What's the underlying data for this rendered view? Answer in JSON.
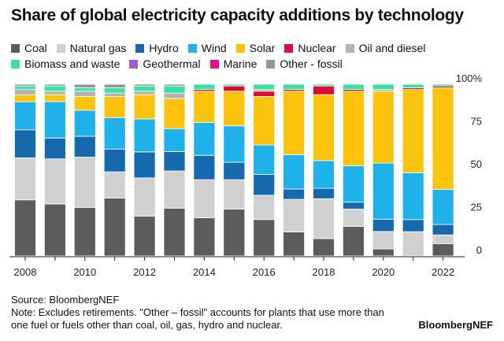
{
  "chart_data": {
    "type": "bar",
    "stacked": true,
    "title": "Share of global electricity capacity additions by technology",
    "xlabel": "",
    "ylabel": "",
    "ylim": [
      0,
      100
    ],
    "y_ticks": [
      "0",
      "25",
      "50",
      "75",
      "100%"
    ],
    "x_tick_labels": [
      "2008",
      "2010",
      "2012",
      "2014",
      "2016",
      "2018",
      "2020",
      "2022"
    ],
    "categories": [
      "2008",
      "2009",
      "2010",
      "2011",
      "2012",
      "2013",
      "2014",
      "2015",
      "2016",
      "2017",
      "2018",
      "2019",
      "2020",
      "2021",
      "2022"
    ],
    "legend_position": "top",
    "grid": false,
    "series": [
      {
        "name": "Coal",
        "color": "#5c5c5c",
        "values": [
          32,
          30,
          28,
          33,
          23,
          27,
          22,
          27,
          21,
          14,
          10,
          17,
          4,
          0,
          7
        ]
      },
      {
        "name": "Natural gas",
        "color": "#d0d0d0",
        "values": [
          24,
          26,
          29,
          15,
          22,
          21,
          22,
          17,
          14,
          19,
          23,
          10,
          10,
          14,
          5
        ]
      },
      {
        "name": "Hydro",
        "color": "#1569ad",
        "values": [
          16,
          12,
          12,
          13,
          15,
          11,
          14,
          10,
          12,
          6,
          6,
          4,
          7,
          7,
          6
        ]
      },
      {
        "name": "Wind",
        "color": "#1fb1ea",
        "values": [
          16,
          21,
          15,
          18,
          19,
          13,
          19,
          21,
          17,
          20,
          16,
          21,
          32,
          27,
          20
        ]
      },
      {
        "name": "Solar",
        "color": "#fcc30c",
        "values": [
          4,
          4,
          8,
          12,
          14,
          17,
          18,
          20,
          28,
          37,
          38,
          43,
          41,
          48,
          58
        ]
      },
      {
        "name": "Nuclear",
        "color": "#d90c37",
        "values": [
          0,
          0,
          0,
          0,
          0,
          0,
          1,
          3,
          3,
          1,
          5,
          1,
          0,
          1,
          1
        ]
      },
      {
        "name": "Oil and diesel",
        "color": "#b2b2b2",
        "values": [
          3,
          2,
          3,
          2,
          2,
          3,
          0,
          0,
          1,
          0,
          0,
          0,
          1,
          0,
          0
        ]
      },
      {
        "name": "Biomass and waste",
        "color": "#36e39e",
        "values": [
          2,
          3,
          2,
          3,
          3,
          4,
          3,
          1,
          3,
          3,
          1,
          3,
          3,
          2,
          1
        ]
      },
      {
        "name": "Geothermal",
        "color": "#a05ad7",
        "values": [
          0,
          0,
          0,
          0,
          0,
          0,
          0,
          0,
          0,
          0,
          0,
          0,
          0,
          0,
          0
        ]
      },
      {
        "name": "Marine",
        "color": "#e70b86",
        "values": [
          0,
          0,
          0,
          0,
          0,
          0,
          0,
          0,
          0,
          0,
          0,
          0,
          0,
          0,
          0
        ]
      },
      {
        "name": "Other - fossil",
        "color": "#959595",
        "values": [
          1,
          1,
          2,
          2,
          1,
          1,
          0,
          0,
          0,
          0,
          0,
          0,
          0,
          0,
          0
        ]
      }
    ]
  },
  "legend_rows": [
    [
      "Coal",
      "Natural gas",
      "Hydro",
      "Wind",
      "Solar",
      "Nuclear",
      "Oil and diesel"
    ],
    [
      "Biomass and waste",
      "Geothermal",
      "Marine",
      "Other - fossil"
    ]
  ],
  "footer": {
    "source": "Source: BloombergNEF",
    "note_line1": "Note: Excludes retirements. \"Other – fossil\" accounts for plants that use more than",
    "note_line2": "one fuel or fuels other than coal, oil, gas, hydro and nuclear.",
    "brand": "BloombergNEF"
  }
}
